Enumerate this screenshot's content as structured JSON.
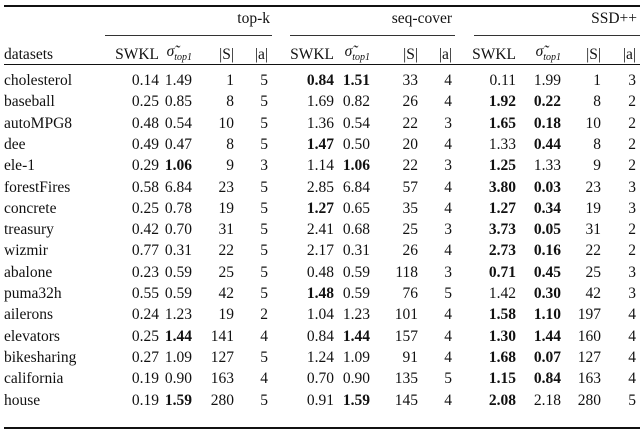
{
  "groups": [
    "top-k",
    "seq-cover",
    "SSD++"
  ],
  "columns": {
    "datasets": "datasets",
    "swkl": "SWKL",
    "sigma": "σ̃",
    "sigma_sub": "top1",
    "s": "|S|",
    "a": "|a|"
  },
  "rows": [
    {
      "name": "cholesterol",
      "v": [
        "0.14",
        "1.49",
        "1",
        "5",
        "0.84",
        "1.51",
        "33",
        "4",
        "0.11",
        "1.99",
        "1",
        "3"
      ],
      "bold": [
        4,
        5
      ]
    },
    {
      "name": "baseball",
      "v": [
        "0.25",
        "0.85",
        "8",
        "5",
        "1.69",
        "0.82",
        "26",
        "4",
        "1.92",
        "0.22",
        "8",
        "2"
      ],
      "bold": [
        8,
        9
      ]
    },
    {
      "name": "autoMPG8",
      "v": [
        "0.48",
        "0.54",
        "10",
        "5",
        "1.36",
        "0.54",
        "22",
        "3",
        "1.65",
        "0.18",
        "10",
        "2"
      ],
      "bold": [
        8,
        9
      ]
    },
    {
      "name": "dee",
      "v": [
        "0.49",
        "0.47",
        "8",
        "5",
        "1.47",
        "0.50",
        "20",
        "4",
        "1.33",
        "0.44",
        "8",
        "2"
      ],
      "bold": [
        4,
        9
      ]
    },
    {
      "name": "ele-1",
      "v": [
        "0.29",
        "1.06",
        "9",
        "3",
        "1.14",
        "1.06",
        "22",
        "3",
        "1.25",
        "1.33",
        "9",
        "2"
      ],
      "bold": [
        1,
        5,
        8
      ]
    },
    {
      "name": "forestFires",
      "v": [
        "0.58",
        "6.84",
        "23",
        "5",
        "2.85",
        "6.84",
        "57",
        "4",
        "3.80",
        "0.03",
        "23",
        "3"
      ],
      "bold": [
        8,
        9
      ]
    },
    {
      "name": "concrete",
      "v": [
        "0.25",
        "0.78",
        "19",
        "5",
        "1.27",
        "0.65",
        "35",
        "4",
        "1.27",
        "0.34",
        "19",
        "3"
      ],
      "bold": [
        4,
        8,
        9
      ]
    },
    {
      "name": "treasury",
      "v": [
        "0.42",
        "0.70",
        "31",
        "5",
        "2.41",
        "0.68",
        "25",
        "3",
        "3.73",
        "0.05",
        "31",
        "2"
      ],
      "bold": [
        8,
        9
      ]
    },
    {
      "name": "wizmir",
      "v": [
        "0.77",
        "0.31",
        "22",
        "5",
        "2.17",
        "0.31",
        "26",
        "4",
        "2.73",
        "0.16",
        "22",
        "2"
      ],
      "bold": [
        8,
        9
      ]
    },
    {
      "name": "abalone",
      "v": [
        "0.23",
        "0.59",
        "25",
        "5",
        "0.48",
        "0.59",
        "118",
        "3",
        "0.71",
        "0.45",
        "25",
        "3"
      ],
      "bold": [
        8,
        9
      ]
    },
    {
      "name": "puma32h",
      "v": [
        "0.55",
        "0.59",
        "42",
        "5",
        "1.48",
        "0.59",
        "76",
        "5",
        "1.42",
        "0.30",
        "42",
        "3"
      ],
      "bold": [
        4,
        9
      ]
    },
    {
      "name": "ailerons",
      "v": [
        "0.24",
        "1.23",
        "19",
        "2",
        "1.04",
        "1.23",
        "101",
        "4",
        "1.58",
        "1.10",
        "197",
        "4"
      ],
      "bold": [
        8,
        9
      ]
    },
    {
      "name": "elevators",
      "v": [
        "0.25",
        "1.44",
        "141",
        "4",
        "0.84",
        "1.44",
        "157",
        "4",
        "1.30",
        "1.44",
        "160",
        "4"
      ],
      "bold": [
        1,
        5,
        8,
        9
      ]
    },
    {
      "name": "bikesharing",
      "v": [
        "0.27",
        "1.09",
        "127",
        "5",
        "1.24",
        "1.09",
        "91",
        "4",
        "1.68",
        "0.07",
        "127",
        "4"
      ],
      "bold": [
        8,
        9
      ]
    },
    {
      "name": "california",
      "v": [
        "0.19",
        "0.90",
        "163",
        "4",
        "0.70",
        "0.90",
        "135",
        "5",
        "1.15",
        "0.84",
        "163",
        "4"
      ],
      "bold": [
        8,
        9
      ]
    },
    {
      "name": "house",
      "v": [
        "0.19",
        "1.59",
        "280",
        "5",
        "0.91",
        "1.59",
        "145",
        "4",
        "2.08",
        "2.18",
        "280",
        "5"
      ],
      "bold": [
        1,
        5,
        8
      ]
    }
  ]
}
